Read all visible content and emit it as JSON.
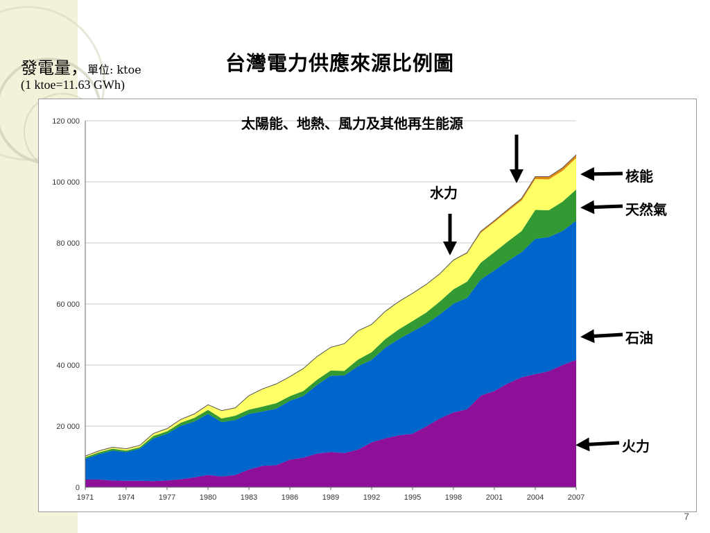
{
  "header": {
    "unit_label": "發電量，",
    "unit_small": "單位: ktoe",
    "unit_equivalence": "(1 ktoe=11.63 GWh)",
    "title": "台灣電力供應來源比例圖"
  },
  "annotations": {
    "renewables": "太陽能、地熱、風力及其他再生能源",
    "hydro": "水力",
    "nuclear": "核能",
    "gas": "天然氣",
    "oil": "石油",
    "thermal": "火力"
  },
  "page_number": "7",
  "chart_data": {
    "type": "area",
    "stacked": true,
    "title": "",
    "xlabel": "",
    "ylabel": "",
    "x": [
      1971,
      1972,
      1973,
      1974,
      1975,
      1976,
      1977,
      1978,
      1979,
      1980,
      1981,
      1982,
      1983,
      1984,
      1985,
      1986,
      1987,
      1988,
      1989,
      1990,
      1991,
      1992,
      1993,
      1994,
      1995,
      1996,
      1997,
      1998,
      1999,
      2000,
      2001,
      2002,
      2003,
      2004,
      2005,
      2006,
      2007
    ],
    "x_tick_labels": [
      "1971",
      "1974",
      "1977",
      "1980",
      "1983",
      "1986",
      "1989",
      "1992",
      "1995",
      "1998",
      "2001",
      "2004",
      "2007"
    ],
    "ylim": [
      0,
      120000
    ],
    "y_tick_labels": [
      "0",
      "20 000",
      "40 000",
      "60 000",
      "80 000",
      "100 000",
      "120 000"
    ],
    "grid": true,
    "series": [
      {
        "name": "火力",
        "color": "#8e0f98",
        "values": [
          2500,
          2500,
          2200,
          2100,
          2100,
          2000,
          2200,
          2600,
          3200,
          4000,
          3500,
          4000,
          5800,
          7000,
          7200,
          9000,
          9700,
          11000,
          11500,
          11200,
          12300,
          14700,
          16000,
          17000,
          17500,
          19900,
          22500,
          24500,
          25500,
          30000,
          31500,
          34000,
          36000,
          37000,
          38000,
          40000,
          41700
        ]
      },
      {
        "name": "石油",
        "color": "#0066cc",
        "values": [
          6800,
          8300,
          9800,
          9400,
          10500,
          14000,
          15300,
          17500,
          18300,
          20000,
          17800,
          18000,
          18200,
          17800,
          18500,
          19300,
          20200,
          22500,
          25000,
          25400,
          27300,
          27000,
          29700,
          31500,
          33500,
          33500,
          34100,
          35600,
          36500,
          38000,
          39500,
          40100,
          41000,
          44300,
          43900,
          43900,
          45600
        ]
      },
      {
        "name": "天然氣",
        "color": "#339933",
        "values": [
          500,
          600,
          600,
          500,
          500,
          800,
          800,
          1000,
          1200,
          1300,
          1200,
          1400,
          1400,
          1600,
          1800,
          1500,
          1600,
          1700,
          1700,
          1500,
          2200,
          2500,
          2800,
          3200,
          3400,
          3800,
          4200,
          4700,
          5300,
          5500,
          6000,
          6400,
          6900,
          9500,
          8800,
          9600,
          10200
        ]
      },
      {
        "name": "水力",
        "color": "#ffff66",
        "values": [
          300,
          400,
          400,
          500,
          500,
          700,
          800,
          1000,
          1200,
          1600,
          2500,
          2500,
          4500,
          5700,
          6200,
          6300,
          7300,
          7500,
          7500,
          8800,
          9300,
          9000,
          9000,
          9000,
          9000,
          9100,
          9000,
          9400,
          9300,
          9800,
          9800,
          9900,
          10000,
          10100,
          10100,
          10100,
          10300
        ]
      },
      {
        "name": "核能",
        "color": "#e08a14",
        "values": [
          100,
          100,
          100,
          100,
          100,
          100,
          100,
          100,
          100,
          100,
          100,
          100,
          100,
          100,
          100,
          100,
          100,
          100,
          100,
          100,
          100,
          100,
          100,
          100,
          100,
          100,
          100,
          200,
          200,
          500,
          500,
          600,
          700,
          800,
          900,
          1000,
          1000
        ]
      },
      {
        "name": "太陽能、地熱、風力及其他再生能源",
        "color": "#333333",
        "values": [
          0,
          0,
          0,
          0,
          0,
          0,
          0,
          0,
          0,
          0,
          0,
          0,
          0,
          0,
          0,
          0,
          0,
          0,
          0,
          0,
          0,
          0,
          0,
          0,
          0,
          0,
          0,
          0,
          0,
          0,
          0,
          0,
          0,
          0,
          0,
          0,
          50
        ]
      }
    ]
  }
}
